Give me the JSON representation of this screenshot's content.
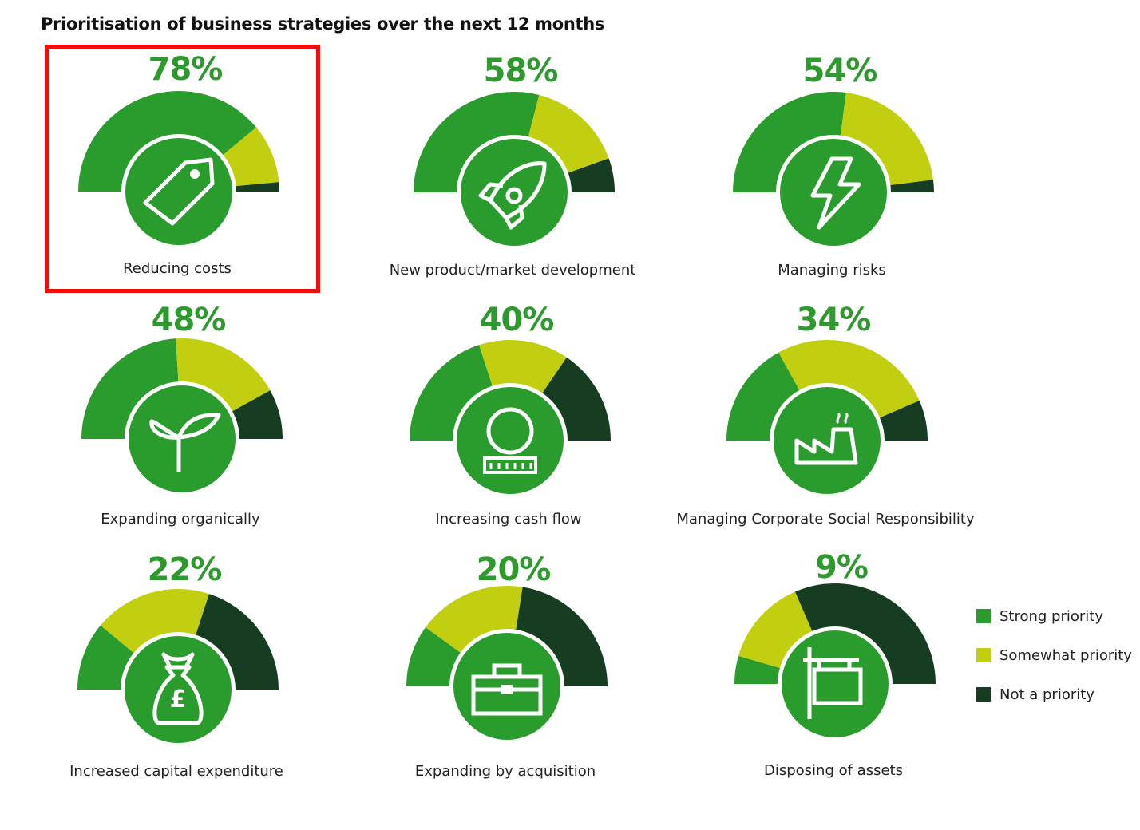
{
  "chart_data": {
    "type": "gauge",
    "title": "Prioritisation of business strategies over the next 12 months",
    "legend": {
      "placement": "right",
      "entries": [
        "Strong priority",
        "Somewhat priority",
        "Not a priority"
      ]
    },
    "colors": {
      "Strong priority": "#2a9c2d",
      "Somewhat priority": "#c2cf10",
      "Not a priority": "#163d22"
    },
    "gauges": [
      {
        "label": "Reducing costs",
        "value_label": "78%",
        "icon": "price-tag-icon",
        "strong": 78,
        "somewhat": 19,
        "not": 3,
        "highlighted": true
      },
      {
        "label": "New product/market development",
        "value_label": "58%",
        "icon": "rocket-icon",
        "strong": 58,
        "somewhat": 31,
        "not": 11
      },
      {
        "label": "Managing risks",
        "value_label": "54%",
        "icon": "lightning-icon",
        "strong": 54,
        "somewhat": 42,
        "not": 4
      },
      {
        "label": "Expanding organically",
        "value_label": "48%",
        "icon": "sprout-icon",
        "strong": 48,
        "somewhat": 36,
        "not": 16
      },
      {
        "label": "Increasing cash flow",
        "value_label": "40%",
        "icon": "coin-stack-icon",
        "strong": 40,
        "somewhat": 29,
        "not": 31
      },
      {
        "label": "Managing Corporate Social Responsibility",
        "value_label": "34%",
        "icon": "factory-icon",
        "strong": 34,
        "somewhat": 53,
        "not": 13
      },
      {
        "label": "Increased capital expenditure",
        "value_label": "22%",
        "icon": "money-bag-icon",
        "strong": 22,
        "somewhat": 38,
        "not": 40
      },
      {
        "label": "Expanding by acquisition",
        "value_label": "20%",
        "icon": "toolbox-icon",
        "strong": 20,
        "somewhat": 35,
        "not": 45
      },
      {
        "label": "Disposing of assets",
        "value_label": "9%",
        "icon": "sign-board-icon",
        "strong": 9,
        "somewhat": 28,
        "not": 63
      }
    ]
  }
}
